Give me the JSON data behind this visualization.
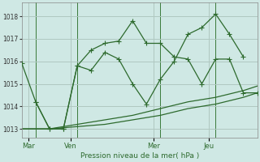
{
  "title": "Pression niveau de la mer( hPa )",
  "background_color": "#cfe8e4",
  "grid_color": "#b0c8c0",
  "line_color": "#2d6a2d",
  "x_ticks_labels": [
    "Mar",
    "Ven",
    "Mer",
    "Jeu"
  ],
  "x_ticks_pos": [
    0.5,
    3.5,
    9.5,
    13.5
  ],
  "x_vlines": [
    1,
    4,
    10,
    14
  ],
  "ylim": [
    1012.6,
    1018.6
  ],
  "yticks": [
    1013,
    1014,
    1015,
    1016,
    1017,
    1018
  ],
  "xlim": [
    0,
    17
  ],
  "series1_x": [
    0,
    1,
    2,
    3,
    4,
    5,
    6,
    7,
    8,
    9,
    10,
    11,
    12,
    13,
    14,
    15,
    16
  ],
  "series1_y": [
    1015.9,
    1014.2,
    1013.0,
    1013.0,
    1015.8,
    1015.6,
    1016.4,
    1016.1,
    1015.0,
    1014.1,
    1015.2,
    1016.0,
    1017.2,
    1017.5,
    1018.1,
    1017.2,
    1016.2
  ],
  "series2_x": [
    1,
    2,
    3,
    4,
    5,
    6,
    7,
    8,
    9,
    10,
    11,
    12,
    13,
    14,
    15,
    16,
    17
  ],
  "series2_y": [
    1014.2,
    1013.0,
    1013.0,
    1015.8,
    1016.5,
    1016.8,
    1016.9,
    1017.8,
    1016.8,
    1016.8,
    1016.2,
    1016.1,
    1015.0,
    1016.1,
    1016.1,
    1014.6,
    1014.6
  ],
  "series3_x": [
    0,
    2,
    4,
    6,
    8,
    10,
    12,
    14,
    16,
    17
  ],
  "series3_y": [
    1013.0,
    1013.0,
    1013.1,
    1013.2,
    1013.4,
    1013.6,
    1013.9,
    1014.1,
    1014.4,
    1014.6
  ],
  "series4_x": [
    0,
    2,
    4,
    6,
    8,
    10,
    12,
    14,
    16,
    17
  ],
  "series4_y": [
    1013.0,
    1013.0,
    1013.2,
    1013.4,
    1013.6,
    1013.9,
    1014.2,
    1014.4,
    1014.7,
    1014.9
  ]
}
